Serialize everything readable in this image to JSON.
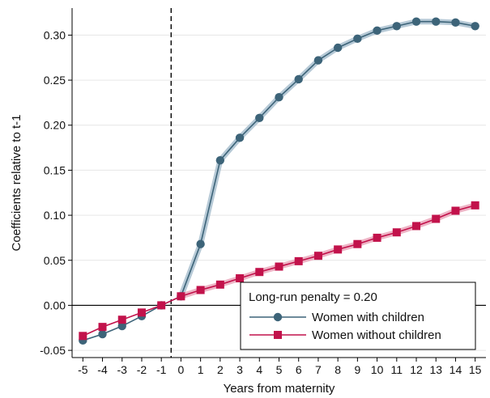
{
  "chart_data": {
    "type": "line",
    "title": "",
    "xlabel": "Years from maternity",
    "ylabel": "Coefficients relative to t-1",
    "x": [
      -5,
      -4,
      -3,
      -2,
      -1,
      0,
      1,
      2,
      3,
      4,
      5,
      6,
      7,
      8,
      9,
      10,
      11,
      12,
      13,
      14,
      15
    ],
    "xticks": [
      "-5",
      "-4",
      "-3",
      "-2",
      "-1",
      "0",
      "1",
      "2",
      "3",
      "4",
      "5",
      "6",
      "7",
      "8",
      "9",
      "10",
      "11",
      "12",
      "13",
      "14",
      "15"
    ],
    "yticks": [
      "-0.05",
      "0.00",
      "0.05",
      "0.10",
      "0.15",
      "0.20",
      "0.25",
      "0.30"
    ],
    "ylim": [
      -0.058,
      0.33
    ],
    "xlim": [
      -5.55,
      15.55
    ],
    "reference_vline_x": -0.5,
    "reference_hline_y": 0,
    "grid": true,
    "legend_placement": "bottom-right",
    "legend_header": "Long-run penalty = 0.20",
    "series": [
      {
        "name": "Women with children",
        "marker": "circle",
        "color": "#3d6479",
        "band_color": "#a9bfcf",
        "values": [
          -0.039,
          -0.032,
          -0.023,
          -0.012,
          0.0,
          0.01,
          0.068,
          0.161,
          0.186,
          0.208,
          0.231,
          0.251,
          0.272,
          0.286,
          0.296,
          0.305,
          0.31,
          0.315,
          0.315,
          0.314,
          0.31
        ]
      },
      {
        "name": "Women without children",
        "marker": "square",
        "color": "#c2124b",
        "band_color": "#eba6bb",
        "values": [
          -0.034,
          -0.024,
          -0.016,
          -0.008,
          0.0,
          0.01,
          0.017,
          0.023,
          0.03,
          0.037,
          0.043,
          0.049,
          0.055,
          0.062,
          0.068,
          0.075,
          0.081,
          0.088,
          0.096,
          0.105,
          0.111
        ]
      }
    ]
  }
}
